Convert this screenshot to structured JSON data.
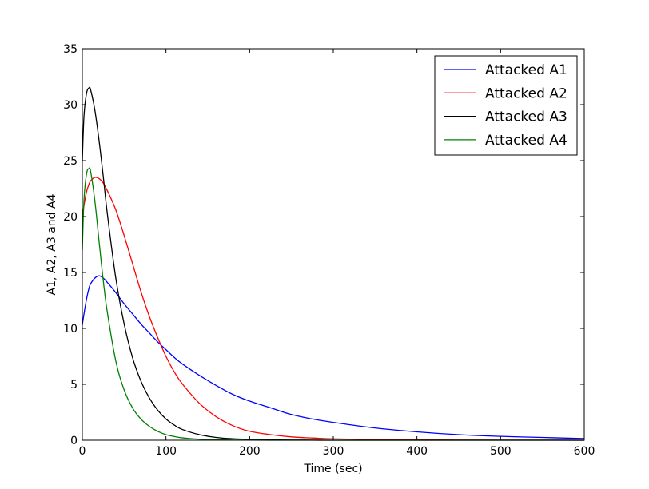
{
  "chart_data": {
    "type": "line",
    "title": "",
    "xlabel": "Time (sec)",
    "ylabel": "A1, A2, A3 and A4",
    "xlim": [
      0,
      600
    ],
    "ylim": [
      0,
      35
    ],
    "xticks": [
      0,
      100,
      200,
      300,
      400,
      500,
      600
    ],
    "yticks": [
      0,
      5,
      10,
      15,
      20,
      25,
      30,
      35
    ],
    "grid": false,
    "legend_position": "top-right",
    "x": [
      0,
      2,
      5,
      8,
      10,
      15,
      20,
      25,
      30,
      40,
      50,
      60,
      70,
      80,
      90,
      100,
      110,
      120,
      140,
      160,
      180,
      200,
      225,
      250,
      275,
      300,
      350,
      400,
      450,
      500,
      550,
      600
    ],
    "series": [
      {
        "name": "Attacked A1",
        "color": "#0000ff",
        "values": [
          10.3,
          11.3,
          12.6,
          13.6,
          14.0,
          14.5,
          14.7,
          14.5,
          14.1,
          13.2,
          12.2,
          11.3,
          10.4,
          9.6,
          8.8,
          8.1,
          7.4,
          6.8,
          5.8,
          4.9,
          4.1,
          3.5,
          2.9,
          2.3,
          1.9,
          1.6,
          1.1,
          0.75,
          0.5,
          0.35,
          0.25,
          0.15
        ]
      },
      {
        "name": "Attacked A2",
        "color": "#ff0000",
        "values": [
          20.0,
          21.0,
          22.2,
          22.9,
          23.2,
          23.5,
          23.4,
          23.0,
          22.3,
          20.6,
          18.3,
          15.8,
          13.3,
          11.1,
          9.2,
          7.5,
          6.1,
          5.0,
          3.3,
          2.1,
          1.3,
          0.8,
          0.5,
          0.3,
          0.2,
          0.12,
          0.06,
          0.03,
          0.02,
          0.01,
          0.01,
          0.0
        ]
      },
      {
        "name": "Attacked A3",
        "color": "#000000",
        "values": [
          25.0,
          29.0,
          31.0,
          31.5,
          31.3,
          29.5,
          26.8,
          23.6,
          20.2,
          14.5,
          10.4,
          7.4,
          5.3,
          3.8,
          2.7,
          1.9,
          1.35,
          0.95,
          0.5,
          0.25,
          0.13,
          0.07,
          0.03,
          0.02,
          0.01,
          0.0,
          0.0,
          0.0,
          0.0,
          0.0,
          0.0,
          0.0
        ]
      },
      {
        "name": "Attacked A4",
        "color": "#008000",
        "values": [
          17.0,
          21.5,
          23.8,
          24.3,
          24.0,
          21.4,
          17.8,
          14.3,
          11.4,
          7.1,
          4.5,
          2.9,
          1.9,
          1.25,
          0.8,
          0.5,
          0.33,
          0.21,
          0.09,
          0.04,
          0.02,
          0.01,
          0.0,
          0.0,
          0.0,
          0.0,
          0.0,
          0.0,
          0.0,
          0.0,
          0.0,
          0.0
        ]
      }
    ]
  }
}
